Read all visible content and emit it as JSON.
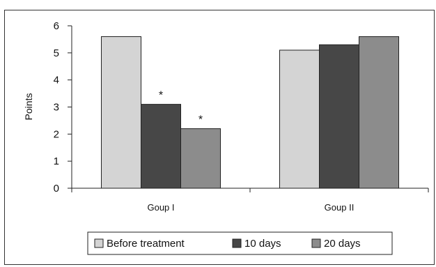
{
  "chart_data": {
    "type": "bar",
    "title": "",
    "xlabel": "",
    "ylabel": "Points",
    "ylim": [
      0,
      6
    ],
    "yticks": [
      0,
      1,
      2,
      3,
      4,
      5,
      6
    ],
    "grid": false,
    "legend_position": "bottom",
    "categories": [
      "Goup I",
      "Goup II"
    ],
    "series": [
      {
        "name": "Before treatment",
        "values": [
          5.6,
          5.1
        ],
        "color": "#d4d4d4"
      },
      {
        "name": "10 days",
        "values": [
          3.1,
          5.3
        ],
        "color": "#474747"
      },
      {
        "name": "20 days",
        "values": [
          2.2,
          5.6
        ],
        "color": "#8c8c8c"
      }
    ],
    "annotations": [
      {
        "text": "*",
        "series": 1,
        "category": 0
      },
      {
        "text": "*",
        "series": 2,
        "category": 0
      }
    ]
  }
}
